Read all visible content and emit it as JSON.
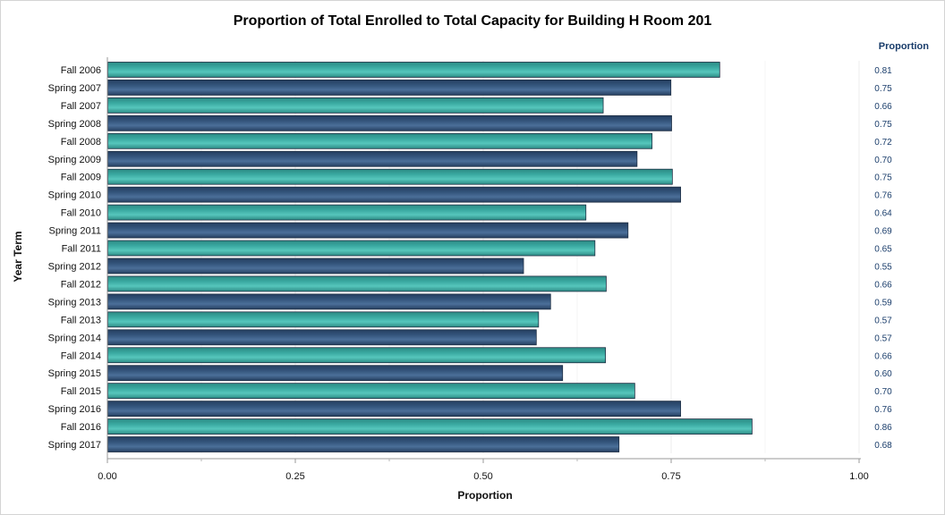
{
  "chart_data": {
    "type": "bar",
    "orientation": "horizontal",
    "title": "Proportion of Total Enrolled to Total Capacity for Building H Room 201",
    "xlabel": "Proportion",
    "ylabel": "Year Term",
    "xlim": [
      0,
      1
    ],
    "xticks": [
      "0.00",
      "0.25",
      "0.50",
      "0.75",
      "1.00"
    ],
    "value_column_header": "Proportion",
    "grid": true,
    "colors": {
      "fall": "#3aa9a1",
      "spring": "#34557c",
      "value_text": "#1a3d6b"
    },
    "categories": [
      "Fall 2006",
      "Spring 2007",
      "Fall 2007",
      "Spring 2008",
      "Fall 2008",
      "Spring 2009",
      "Fall 2009",
      "Spring 2010",
      "Fall 2010",
      "Spring 2011",
      "Fall 2011",
      "Spring 2012",
      "Fall 2012",
      "Spring 2013",
      "Fall 2013",
      "Spring 2014",
      "Fall 2014",
      "Spring 2015",
      "Fall 2015",
      "Spring 2016",
      "Fall 2016",
      "Spring 2017"
    ],
    "values": [
      0.814,
      0.749,
      0.659,
      0.75,
      0.724,
      0.704,
      0.751,
      0.762,
      0.636,
      0.692,
      0.648,
      0.553,
      0.663,
      0.589,
      0.573,
      0.57,
      0.662,
      0.605,
      0.701,
      0.762,
      0.857,
      0.68
    ],
    "value_labels": [
      "0.81",
      "0.75",
      "0.66",
      "0.75",
      "0.72",
      "0.70",
      "0.75",
      "0.76",
      "0.64",
      "0.69",
      "0.65",
      "0.55",
      "0.66",
      "0.59",
      "0.57",
      "0.57",
      "0.66",
      "0.60",
      "0.70",
      "0.76",
      "0.86",
      "0.68"
    ]
  }
}
